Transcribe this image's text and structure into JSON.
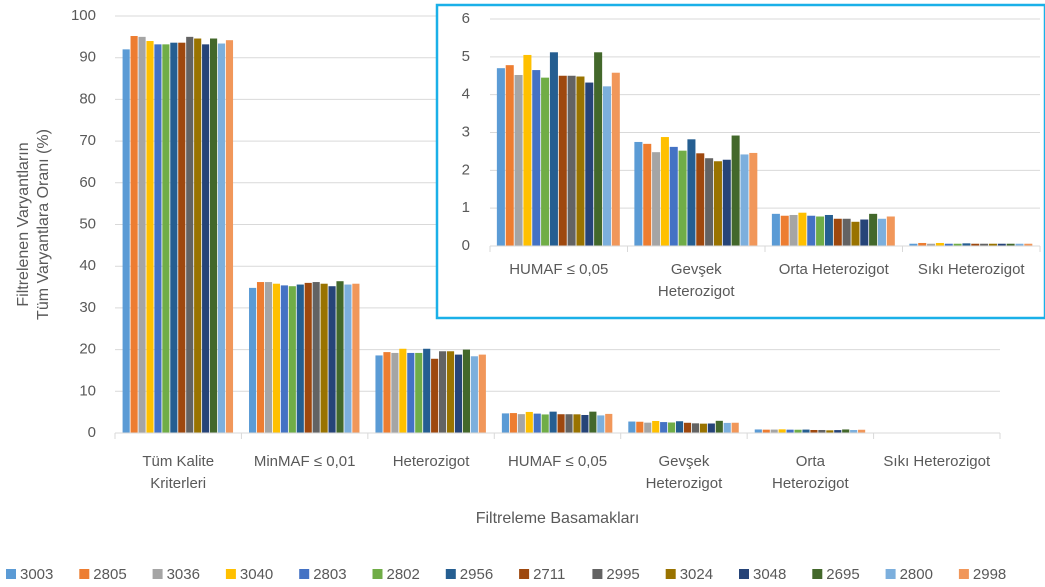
{
  "chart_data": [
    {
      "type": "bar",
      "ylabel": "Filtrelenen Varyantların\nTüm Varyantlara Oranı (%)",
      "xlabel": "Filtreleme Basamakları",
      "categories": [
        "Tüm Kalite\nKriterleri",
        "MinMAF ≤ 0,01",
        "Heterozigot",
        "HUMAF ≤ 0,05",
        "Gevşek\nHeterozigot",
        "Orta\nHeterozigot",
        "Sıkı Heterozigot"
      ],
      "ylim": [
        0,
        100
      ],
      "yticks": [
        0,
        10,
        20,
        30,
        40,
        50,
        60,
        70,
        80,
        90,
        100
      ],
      "grid": true,
      "series": [
        {
          "name": "3003",
          "color": "#5b9bd5",
          "values": [
            92,
            34.8,
            18.6,
            4.7,
            2.75,
            0.85,
            0.06
          ]
        },
        {
          "name": "2805",
          "color": "#ed7d31",
          "values": [
            95.2,
            36.2,
            19.4,
            4.78,
            2.7,
            0.8,
            0.08
          ]
        },
        {
          "name": "3036",
          "color": "#a5a5a5",
          "values": [
            95,
            36.2,
            19.2,
            4.52,
            2.48,
            0.82,
            0.06
          ]
        },
        {
          "name": "3040",
          "color": "#ffc000",
          "values": [
            94,
            35.8,
            20.2,
            5.05,
            2.88,
            0.88,
            0.08
          ]
        },
        {
          "name": "2803",
          "color": "#4472c4",
          "values": [
            93.2,
            35.4,
            19.2,
            4.65,
            2.62,
            0.8,
            0.06
          ]
        },
        {
          "name": "2802",
          "color": "#70ad47",
          "values": [
            93.2,
            35.2,
            19.2,
            4.45,
            2.52,
            0.78,
            0.06
          ]
        },
        {
          "name": "2956",
          "color": "#255e91",
          "values": [
            93.6,
            35.6,
            20.2,
            5.12,
            2.82,
            0.82,
            0.07
          ]
        },
        {
          "name": "2711",
          "color": "#9e480e",
          "values": [
            93.6,
            36,
            17.8,
            4.5,
            2.45,
            0.72,
            0.06
          ]
        },
        {
          "name": "2995",
          "color": "#636363",
          "values": [
            95,
            36.2,
            19.6,
            4.5,
            2.32,
            0.72,
            0.06
          ]
        },
        {
          "name": "3024",
          "color": "#997300",
          "values": [
            94.6,
            35.8,
            19.6,
            4.48,
            2.24,
            0.64,
            0.06
          ]
        },
        {
          "name": "3048",
          "color": "#264478",
          "values": [
            93.2,
            35.2,
            18.8,
            4.32,
            2.28,
            0.7,
            0.06
          ]
        },
        {
          "name": "2695",
          "color": "#43682b",
          "values": [
            94.6,
            36.4,
            20,
            5.12,
            2.92,
            0.85,
            0.06
          ]
        },
        {
          "name": "2800",
          "color": "#7cafdd",
          "values": [
            93.4,
            35.6,
            18.4,
            4.22,
            2.42,
            0.72,
            0.06
          ]
        },
        {
          "name": "2998",
          "color": "#f1975a",
          "values": [
            94.2,
            35.8,
            18.8,
            4.58,
            2.46,
            0.78,
            0.06
          ]
        }
      ]
    },
    {
      "type": "bar",
      "categories": [
        "HUMAF ≤ 0,05",
        "Gevşek\nHeterozigot",
        "Orta Heterozigot",
        "Sıkı Heterozigot"
      ],
      "ylim": [
        0,
        6
      ],
      "yticks": [
        0,
        1,
        2,
        3,
        4,
        5,
        6
      ],
      "grid": true,
      "series": [
        {
          "color": "#5b9bd5",
          "values": [
            4.7,
            2.75,
            0.85,
            0.06
          ]
        },
        {
          "color": "#ed7d31",
          "values": [
            4.78,
            2.7,
            0.8,
            0.08
          ]
        },
        {
          "color": "#a5a5a5",
          "values": [
            4.52,
            2.48,
            0.82,
            0.06
          ]
        },
        {
          "color": "#ffc000",
          "values": [
            5.05,
            2.88,
            0.88,
            0.08
          ]
        },
        {
          "color": "#4472c4",
          "values": [
            4.65,
            2.62,
            0.8,
            0.06
          ]
        },
        {
          "color": "#70ad47",
          "values": [
            4.45,
            2.52,
            0.78,
            0.06
          ]
        },
        {
          "color": "#255e91",
          "values": [
            5.12,
            2.82,
            0.82,
            0.07
          ]
        },
        {
          "color": "#9e480e",
          "values": [
            4.5,
            2.45,
            0.72,
            0.06
          ]
        },
        {
          "color": "#636363",
          "values": [
            4.5,
            2.32,
            0.72,
            0.06
          ]
        },
        {
          "color": "#997300",
          "values": [
            4.48,
            2.24,
            0.64,
            0.06
          ]
        },
        {
          "color": "#264478",
          "values": [
            4.32,
            2.28,
            0.7,
            0.06
          ]
        },
        {
          "color": "#43682b",
          "values": [
            5.12,
            2.92,
            0.85,
            0.06
          ]
        },
        {
          "color": "#7cafdd",
          "values": [
            4.22,
            2.42,
            0.72,
            0.06
          ]
        },
        {
          "color": "#f1975a",
          "values": [
            4.58,
            2.46,
            0.78,
            0.06
          ]
        }
      ]
    }
  ]
}
